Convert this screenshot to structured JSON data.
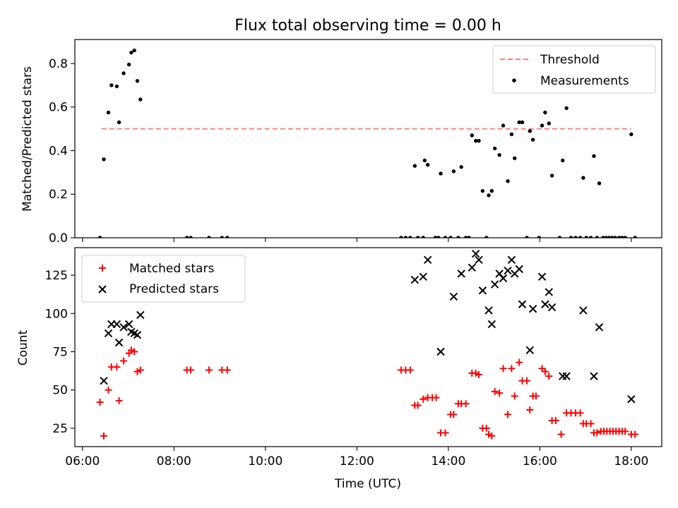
{
  "figure": {
    "title": "Flux total observing time = 0.00 h",
    "xlabel": "Time (UTC)"
  },
  "chart_data": [
    {
      "type": "scatter",
      "ylabel": "Matched/Predicted stars",
      "xlim": [
        "05:50",
        "18:40"
      ],
      "ylim": [
        0,
        0.91
      ],
      "yticks": [
        0.0,
        0.2,
        0.4,
        0.6,
        0.8
      ],
      "ytick_labels": [
        "0.0",
        "0.2",
        "0.4",
        "0.6",
        "0.8"
      ],
      "xticks": [
        "06:00",
        "08:00",
        "10:00",
        "12:00",
        "14:00",
        "16:00",
        "18:00"
      ],
      "show_x_tick_labels": false,
      "grid": false,
      "legend": {
        "placement": "top-right",
        "entries": [
          "Threshold",
          "Measurements"
        ]
      },
      "threshold": {
        "name": "Threshold",
        "value": 0.5,
        "x_range": [
          "06:25",
          "18:00"
        ],
        "color": "#ff8080",
        "style": "dashed"
      },
      "series": [
        {
          "name": "Measurements",
          "marker": "dot",
          "color": "#000000",
          "points": [
            [
              "06:23",
              0.0
            ],
            [
              "06:28",
              0.36
            ],
            [
              "06:34",
              0.575
            ],
            [
              "06:38",
              0.7
            ],
            [
              "06:45",
              0.695
            ],
            [
              "06:48",
              0.53
            ],
            [
              "06:54",
              0.755
            ],
            [
              "07:01",
              0.795
            ],
            [
              "07:04",
              0.85
            ],
            [
              "07:08",
              0.86
            ],
            [
              "07:12",
              0.72
            ],
            [
              "07:16",
              0.635
            ],
            [
              "08:17",
              0.0
            ],
            [
              "08:22",
              0.0
            ],
            [
              "08:46",
              0.0
            ],
            [
              "09:03",
              0.0
            ],
            [
              "09:10",
              0.0
            ],
            [
              "12:58",
              0.0
            ],
            [
              "13:04",
              0.0
            ],
            [
              "13:10",
              0.0
            ],
            [
              "13:16",
              0.33
            ],
            [
              "13:20",
              0.0
            ],
            [
              "13:27",
              0.0
            ],
            [
              "13:29",
              0.355
            ],
            [
              "13:33",
              0.335
            ],
            [
              "13:43",
              0.0
            ],
            [
              "13:47",
              0.0
            ],
            [
              "13:50",
              0.295
            ],
            [
              "13:56",
              0.0
            ],
            [
              "14:03",
              0.0
            ],
            [
              "14:07",
              0.305
            ],
            [
              "14:13",
              0.0
            ],
            [
              "14:17",
              0.325
            ],
            [
              "14:23",
              0.0
            ],
            [
              "14:27",
              0.0
            ],
            [
              "14:31",
              0.47
            ],
            [
              "14:36",
              0.445
            ],
            [
              "14:40",
              0.445
            ],
            [
              "14:45",
              0.215
            ],
            [
              "14:50",
              0.0
            ],
            [
              "14:53",
              0.195
            ],
            [
              "14:57",
              0.215
            ],
            [
              "15:01",
              0.41
            ],
            [
              "15:07",
              0.38
            ],
            [
              "15:12",
              0.515
            ],
            [
              "15:18",
              0.26
            ],
            [
              "15:23",
              0.475
            ],
            [
              "15:27",
              0.365
            ],
            [
              "15:33",
              0.53
            ],
            [
              "15:37",
              0.53
            ],
            [
              "15:43",
              0.0
            ],
            [
              "15:47",
              0.49
            ],
            [
              "15:51",
              0.45
            ],
            [
              "15:59",
              0.0
            ],
            [
              "16:03",
              0.515
            ],
            [
              "16:07",
              0.575
            ],
            [
              "16:12",
              0.525
            ],
            [
              "16:16",
              0.285
            ],
            [
              "16:26",
              0.0
            ],
            [
              "16:30",
              0.355
            ],
            [
              "16:35",
              0.595
            ],
            [
              "16:41",
              0.0
            ],
            [
              "16:47",
              0.0
            ],
            [
              "16:53",
              0.0
            ],
            [
              "16:57",
              0.275
            ],
            [
              "17:01",
              0.0
            ],
            [
              "17:07",
              0.0
            ],
            [
              "17:11",
              0.375
            ],
            [
              "17:15",
              0.0
            ],
            [
              "17:18",
              0.25
            ],
            [
              "17:23",
              0.0
            ],
            [
              "17:27",
              0.0
            ],
            [
              "17:31",
              0.0
            ],
            [
              "17:35",
              0.0
            ],
            [
              "17:39",
              0.0
            ],
            [
              "17:44",
              0.0
            ],
            [
              "17:48",
              0.0
            ],
            [
              "17:52",
              0.0
            ],
            [
              "18:00",
              0.475
            ],
            [
              "18:05",
              0.0
            ]
          ]
        }
      ]
    },
    {
      "type": "scatter",
      "ylabel": "Count",
      "xlim": [
        "05:50",
        "18:40"
      ],
      "ylim": [
        13,
        143
      ],
      "yticks": [
        25,
        50,
        75,
        100,
        125
      ],
      "ytick_labels": [
        "25",
        "50",
        "75",
        "100",
        "125"
      ],
      "xticks": [
        "06:00",
        "08:00",
        "10:00",
        "12:00",
        "14:00",
        "16:00",
        "18:00"
      ],
      "xtick_labels": [
        "06:00",
        "08:00",
        "10:00",
        "12:00",
        "14:00",
        "16:00",
        "18:00"
      ],
      "grid": false,
      "legend": {
        "placement": "top-left",
        "entries": [
          "Matched stars",
          "Predicted stars"
        ]
      },
      "series": [
        {
          "name": "Matched stars",
          "marker": "plus",
          "color": "#ff0000",
          "points": [
            [
              "06:23",
              42
            ],
            [
              "06:28",
              20
            ],
            [
              "06:34",
              50
            ],
            [
              "06:38",
              65
            ],
            [
              "06:45",
              65
            ],
            [
              "06:48",
              43
            ],
            [
              "06:54",
              69
            ],
            [
              "07:01",
              74
            ],
            [
              "07:04",
              76
            ],
            [
              "07:08",
              75
            ],
            [
              "07:12",
              62
            ],
            [
              "07:16",
              63
            ],
            [
              "08:17",
              63
            ],
            [
              "08:22",
              63
            ],
            [
              "08:46",
              63
            ],
            [
              "09:03",
              63
            ],
            [
              "09:10",
              63
            ],
            [
              "12:58",
              63
            ],
            [
              "13:04",
              63
            ],
            [
              "13:10",
              63
            ],
            [
              "13:16",
              40
            ],
            [
              "13:20",
              40
            ],
            [
              "13:27",
              44
            ],
            [
              "13:33",
              45
            ],
            [
              "13:39",
              45
            ],
            [
              "13:44",
              45
            ],
            [
              "13:50",
              22
            ],
            [
              "13:56",
              22
            ],
            [
              "14:03",
              34
            ],
            [
              "14:07",
              34
            ],
            [
              "14:13",
              41
            ],
            [
              "14:17",
              41
            ],
            [
              "14:23",
              41
            ],
            [
              "14:31",
              61
            ],
            [
              "14:36",
              61
            ],
            [
              "14:40",
              60
            ],
            [
              "14:45",
              25
            ],
            [
              "14:50",
              25
            ],
            [
              "14:53",
              21
            ],
            [
              "14:57",
              20
            ],
            [
              "15:01",
              49
            ],
            [
              "15:07",
              48
            ],
            [
              "15:12",
              64
            ],
            [
              "15:18",
              34
            ],
            [
              "15:23",
              64
            ],
            [
              "15:27",
              46
            ],
            [
              "15:33",
              68
            ],
            [
              "15:37",
              56
            ],
            [
              "15:43",
              56
            ],
            [
              "15:47",
              37
            ],
            [
              "15:51",
              46
            ],
            [
              "15:55",
              46
            ],
            [
              "16:03",
              64
            ],
            [
              "16:07",
              62
            ],
            [
              "16:12",
              59
            ],
            [
              "16:16",
              30
            ],
            [
              "16:21",
              30
            ],
            [
              "16:28",
              21
            ],
            [
              "16:35",
              35
            ],
            [
              "16:41",
              35
            ],
            [
              "16:47",
              35
            ],
            [
              "16:53",
              35
            ],
            [
              "16:57",
              28
            ],
            [
              "17:01",
              28
            ],
            [
              "17:07",
              28
            ],
            [
              "17:11",
              22
            ],
            [
              "17:15",
              22
            ],
            [
              "17:20",
              23
            ],
            [
              "17:24",
              23
            ],
            [
              "17:28",
              23
            ],
            [
              "17:32",
              23
            ],
            [
              "17:36",
              23
            ],
            [
              "17:40",
              23
            ],
            [
              "17:44",
              23
            ],
            [
              "17:48",
              23
            ],
            [
              "17:52",
              23
            ],
            [
              "18:00",
              21
            ],
            [
              "18:05",
              21
            ]
          ]
        },
        {
          "name": "Predicted stars",
          "marker": "x",
          "color": "#000000",
          "points": [
            [
              "06:28",
              56
            ],
            [
              "06:34",
              87
            ],
            [
              "06:38",
              93
            ],
            [
              "06:45",
              93
            ],
            [
              "06:48",
              81
            ],
            [
              "06:54",
              91
            ],
            [
              "07:01",
              93
            ],
            [
              "07:04",
              88
            ],
            [
              "07:08",
              87
            ],
            [
              "07:12",
              86
            ],
            [
              "07:16",
              99
            ],
            [
              "13:16",
              122
            ],
            [
              "13:27",
              124
            ],
            [
              "13:33",
              135
            ],
            [
              "13:50",
              75
            ],
            [
              "14:07",
              111
            ],
            [
              "14:17",
              126
            ],
            [
              "14:31",
              130
            ],
            [
              "14:36",
              139
            ],
            [
              "14:40",
              135
            ],
            [
              "14:45",
              115
            ],
            [
              "14:53",
              102
            ],
            [
              "14:57",
              93
            ],
            [
              "15:01",
              119
            ],
            [
              "15:07",
              126
            ],
            [
              "15:12",
              123
            ],
            [
              "15:18",
              128
            ],
            [
              "15:23",
              135
            ],
            [
              "15:27",
              126
            ],
            [
              "15:33",
              129
            ],
            [
              "15:37",
              106
            ],
            [
              "15:47",
              76
            ],
            [
              "15:51",
              103
            ],
            [
              "16:03",
              124
            ],
            [
              "16:07",
              106
            ],
            [
              "16:12",
              114
            ],
            [
              "16:16",
              104
            ],
            [
              "16:30",
              59
            ],
            [
              "16:35",
              59
            ],
            [
              "16:57",
              102
            ],
            [
              "17:11",
              59
            ],
            [
              "17:18",
              91
            ],
            [
              "18:00",
              44
            ]
          ]
        }
      ]
    }
  ]
}
